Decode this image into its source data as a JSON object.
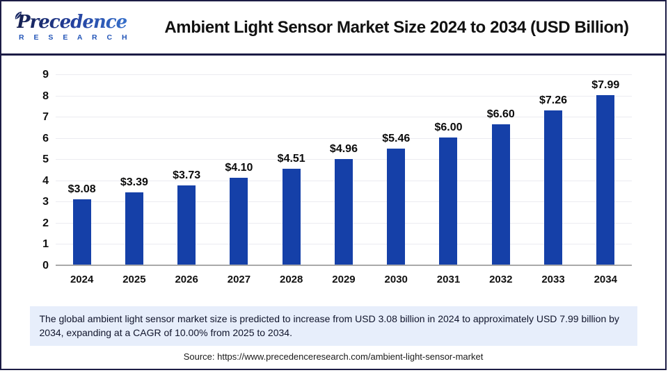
{
  "header": {
    "logo": {
      "line1": "Precedence",
      "line2": "R E S E A R C H"
    },
    "title": "Ambient Light Sensor Market Size 2024 to 2034 (USD Billion)"
  },
  "chart_data": {
    "type": "bar",
    "title": "Ambient Light Sensor Market Size 2024 to 2034 (USD Billion)",
    "categories": [
      "2024",
      "2025",
      "2026",
      "2027",
      "2028",
      "2029",
      "2030",
      "2031",
      "2032",
      "2033",
      "2034"
    ],
    "values": [
      3.08,
      3.39,
      3.73,
      4.1,
      4.51,
      4.96,
      5.46,
      6.0,
      6.6,
      7.26,
      7.99
    ],
    "bar_labels": [
      "$3.08",
      "$3.39",
      "$3.73",
      "$4.10",
      "$4.51",
      "$4.96",
      "$5.46",
      "$6.00",
      "$6.60",
      "$7.26",
      "$7.99"
    ],
    "xlabel": "",
    "ylabel": "",
    "ylim": [
      0,
      9
    ],
    "yticks": [
      0,
      1,
      2,
      3,
      4,
      5,
      6,
      7,
      8,
      9
    ],
    "grid": true,
    "legend_position": "none",
    "bar_color": "#1540a8"
  },
  "footer": {
    "summary": "The global ambient light sensor market size is predicted to increase from USD 3.08 billion in 2024 to approximately USD 7.99 billion by 2034, expanding at a CAGR of 10.00% from 2025 to 2034.",
    "source": "Source: https://www.precedenceresearch.com/ambient-light-sensor-market"
  },
  "colors": {
    "bar": "#1540a8",
    "frame_border": "#1c1c45",
    "summary_bg": "#e7eefb",
    "gridline": "#ebebf0",
    "axis_line": "#a9a9a9",
    "logo_dark": "#151f4e",
    "logo_light": "#3a7bd5"
  }
}
